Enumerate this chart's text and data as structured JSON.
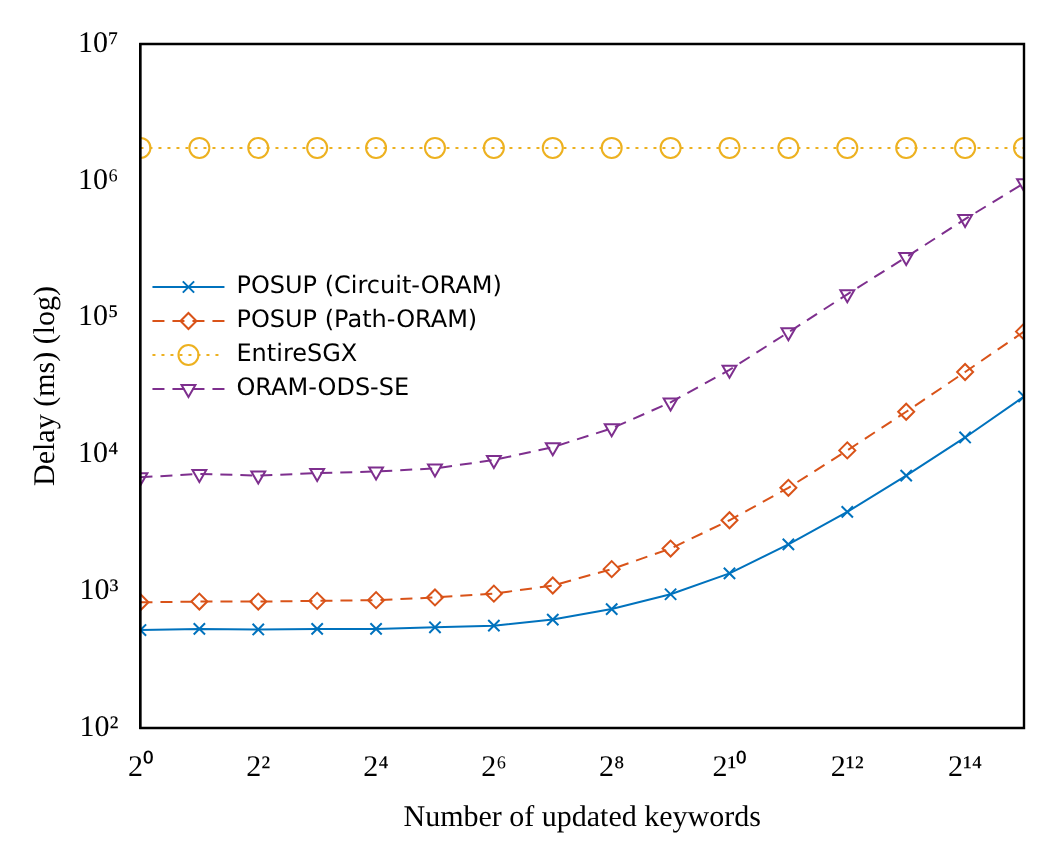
{
  "chart_data": {
    "type": "line",
    "xlabel": "Number of updated keywords",
    "ylabel": "Delay (ms) (log)",
    "log": "xy",
    "grid": false,
    "legend": "left",
    "x": [
      1,
      2,
      4,
      8,
      16,
      32,
      64,
      128,
      256,
      512,
      1024,
      2048,
      4096,
      8192,
      16384,
      32768
    ],
    "xlim": [
      1,
      32768
    ],
    "xticks": [
      {
        "value": 1,
        "label": "2⁰"
      },
      {
        "value": 4,
        "label": "2²"
      },
      {
        "value": 16,
        "label": "2⁴"
      },
      {
        "value": 64,
        "label": "2⁶"
      },
      {
        "value": 256,
        "label": "2⁸"
      },
      {
        "value": 1024,
        "label": "2¹⁰"
      },
      {
        "value": 4096,
        "label": "2¹²"
      },
      {
        "value": 16384,
        "label": "2¹⁴"
      }
    ],
    "ylim": [
      100,
      10000000
    ],
    "yticks": [
      {
        "value": 100,
        "label": "10²"
      },
      {
        "value": 1000,
        "label": "10³"
      },
      {
        "value": 10000,
        "label": "10⁴"
      },
      {
        "value": 100000,
        "label": "10⁵"
      },
      {
        "value": 1000000,
        "label": "10⁶"
      },
      {
        "value": 10000000,
        "label": "10⁷"
      }
    ],
    "series": [
      {
        "name": "POSUP (Circuit-ORAM)",
        "color": "#0072bd",
        "marker": "cross",
        "line_style": "solid",
        "values": [
          520,
          530,
          525,
          530,
          530,
          545,
          560,
          620,
          740,
          950,
          1350,
          2200,
          3800,
          7000,
          13300,
          26500
        ]
      },
      {
        "name": "POSUP (Path-ORAM)",
        "color": "#d95319",
        "marker": "diamond",
        "line_style": "dashed",
        "values": [
          830,
          840,
          840,
          850,
          860,
          900,
          960,
          1100,
          1450,
          2050,
          3300,
          5700,
          10700,
          20500,
          40000,
          79000
        ]
      },
      {
        "name": "EntireSGX",
        "color": "#edb120",
        "marker": "circle",
        "line_style": "dotted",
        "values": [
          1740000,
          1740000,
          1740000,
          1740000,
          1740000,
          1740000,
          1740000,
          1740000,
          1740000,
          1740000,
          1740000,
          1740000,
          1740000,
          1740000,
          1740000,
          1740000
        ]
      },
      {
        "name": "ORAM-ODS-SE",
        "color": "#7e2f8e",
        "marker": "triangle",
        "line_style": "dashed",
        "values": [
          6800,
          7200,
          7000,
          7300,
          7500,
          7900,
          9100,
          11300,
          15500,
          24000,
          41500,
          78000,
          148000,
          277000,
          525000,
          960000
        ]
      }
    ]
  }
}
